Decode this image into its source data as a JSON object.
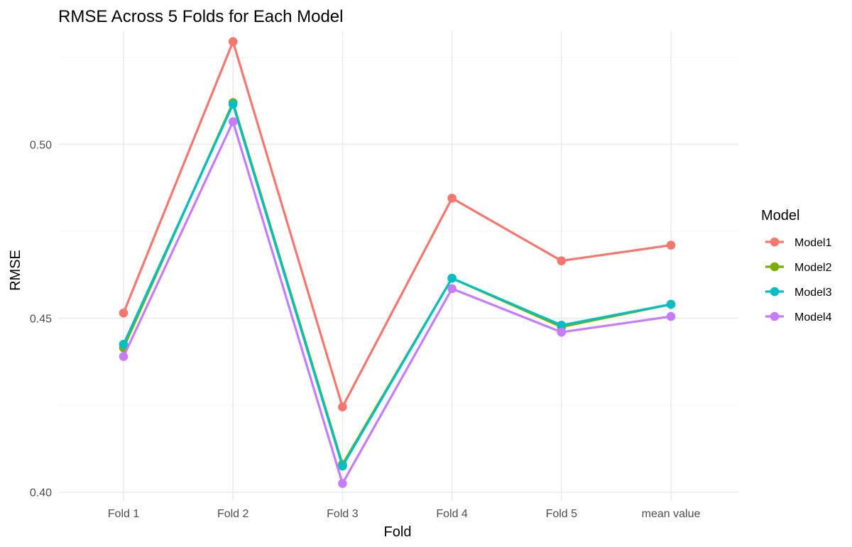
{
  "chart_data": {
    "type": "line",
    "title": "RMSE Across 5 Folds for Each Model",
    "xlabel": "Fold",
    "ylabel": "RMSE",
    "categories": [
      "Fold 1",
      "Fold 2",
      "Fold 3",
      "Fold 4",
      "Fold 5",
      "mean value"
    ],
    "ylim": [
      0.3975,
      0.5325
    ],
    "yticks": [
      0.4,
      0.45,
      0.5
    ],
    "ytick_labels": [
      "0.40",
      "0.45",
      "0.50"
    ],
    "grid": true,
    "legend": {
      "title": "Model",
      "placement": "right"
    },
    "series": [
      {
        "name": "Model1",
        "color": "#F8766D",
        "values": [
          0.4515,
          0.5295,
          0.4245,
          0.4845,
          0.4665,
          0.471
        ]
      },
      {
        "name": "Model2",
        "color": "#7CAE00",
        "values": [
          0.4415,
          0.512,
          0.408,
          0.4615,
          0.4475,
          0.454
        ]
      },
      {
        "name": "Model3",
        "color": "#00BFC4",
        "values": [
          0.4425,
          0.5115,
          0.4075,
          0.4615,
          0.448,
          0.454
        ]
      },
      {
        "name": "Model4",
        "color": "#C77CFF",
        "values": [
          0.439,
          0.5065,
          0.4025,
          0.4585,
          0.446,
          0.4505
        ]
      }
    ]
  }
}
